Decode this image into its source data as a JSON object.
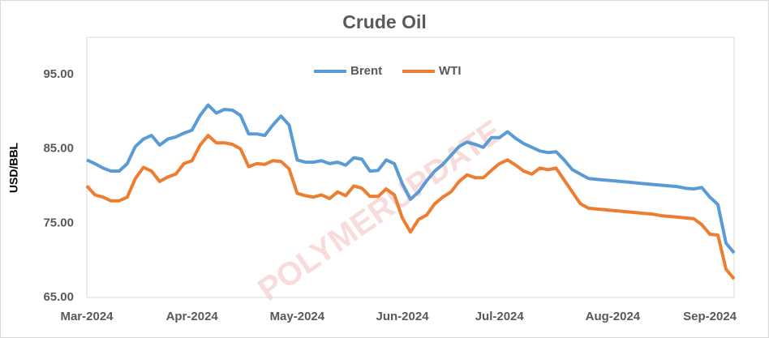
{
  "chart_data": {
    "type": "line",
    "title": "Crude Oil",
    "y_label": "USD/BBL",
    "watermark": "POLYMERUPDATE",
    "categories": [
      "Mar-2024",
      null,
      null,
      null,
      null,
      null,
      null,
      null,
      null,
      null,
      null,
      null,
      null,
      "Apr-2024",
      null,
      null,
      null,
      null,
      null,
      null,
      null,
      null,
      null,
      null,
      null,
      null,
      "May-2024",
      null,
      null,
      null,
      null,
      null,
      null,
      null,
      null,
      null,
      null,
      null,
      null,
      "Jun-2024",
      null,
      null,
      null,
      null,
      null,
      null,
      null,
      null,
      null,
      null,
      null,
      "Jul-2024",
      null,
      null,
      null,
      null,
      null,
      null,
      null,
      null,
      null,
      null,
      null,
      null,
      null,
      "Aug-2024",
      null,
      null,
      null,
      null,
      null,
      null,
      null,
      null,
      null,
      null,
      null,
      "Sep-2024",
      null,
      null,
      null
    ],
    "series": [
      {
        "name": "Brent",
        "color": "#5b9bd5",
        "values": [
          83.5,
          83.0,
          82.4,
          82.0,
          82.0,
          83.0,
          85.3,
          86.3,
          86.8,
          85.5,
          86.3,
          86.6,
          87.1,
          87.5,
          89.5,
          90.9,
          89.8,
          90.3,
          90.2,
          89.5,
          87.0,
          87.0,
          86.8,
          88.2,
          89.4,
          88.2,
          83.5,
          83.2,
          83.2,
          83.4,
          83.0,
          83.2,
          82.8,
          83.8,
          83.6,
          82.0,
          82.1,
          83.5,
          83.0,
          80.3,
          78.2,
          79.2,
          80.7,
          82.0,
          82.9,
          84.1,
          85.3,
          85.9,
          85.6,
          85.2,
          86.5,
          86.5,
          87.3,
          86.4,
          85.7,
          85.2,
          84.7,
          84.5,
          84.6,
          83.5,
          82.2,
          81.6,
          81.0,
          80.9,
          80.8,
          80.7,
          80.6,
          80.5,
          80.4,
          80.3,
          80.2,
          80.1,
          80.0,
          79.9,
          79.7,
          79.6,
          79.8,
          78.5,
          77.5,
          72.3,
          71.0
        ]
      },
      {
        "name": "WTI",
        "color": "#ed7d31",
        "values": [
          80.0,
          78.8,
          78.5,
          78.0,
          78.0,
          78.5,
          81.0,
          82.5,
          82.0,
          80.6,
          81.2,
          81.6,
          83.0,
          83.4,
          85.5,
          86.8,
          85.8,
          85.8,
          85.6,
          85.0,
          82.6,
          83.0,
          82.9,
          83.4,
          83.3,
          82.3,
          79.0,
          78.7,
          78.5,
          78.8,
          78.3,
          79.2,
          78.7,
          80.0,
          79.7,
          78.6,
          78.6,
          79.6,
          78.8,
          75.7,
          73.8,
          75.5,
          76.1,
          77.6,
          78.5,
          79.2,
          80.6,
          81.5,
          81.1,
          81.1,
          82.1,
          83.0,
          83.5,
          82.8,
          82.0,
          81.6,
          82.4,
          82.2,
          82.4,
          80.8,
          79.2,
          77.6,
          77.0,
          76.9,
          76.8,
          76.7,
          76.6,
          76.5,
          76.4,
          76.3,
          76.2,
          76.0,
          75.9,
          75.8,
          75.7,
          75.6,
          74.8,
          73.5,
          73.4,
          68.8,
          67.5
        ]
      }
    ],
    "ylim": [
      65,
      100
    ],
    "yticks": [
      {
        "value": 65,
        "label": "65.00"
      },
      {
        "value": 75,
        "label": "75.00"
      },
      {
        "value": 85,
        "label": "85.00"
      },
      {
        "value": 95,
        "label": "95.00"
      }
    ],
    "grid": false,
    "legend": "top"
  }
}
